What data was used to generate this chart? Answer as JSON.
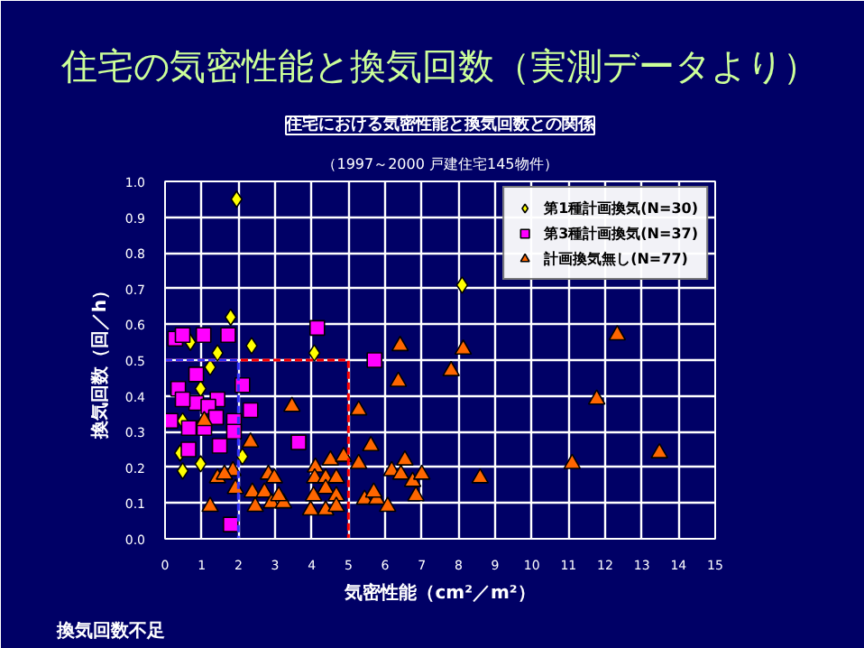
{
  "chart_data": {
    "type": "scatter",
    "title": "住宅の気密性能と換気回数（実測データより）",
    "subtitle": "住宅における気密性能と換気回数との関係",
    "annotations": [
      "（1997～2000 戸建住宅145物件）",
      "換気回数不足"
    ],
    "xlabel": "気密性能（cm²／m²）",
    "ylabel": "換気回数（回／h）",
    "xlim": [
      0,
      15
    ],
    "ylim": [
      0,
      1
    ],
    "xticks": [
      0,
      1,
      2,
      3,
      4,
      5,
      6,
      7,
      8,
      9,
      10,
      11,
      12,
      13,
      14,
      15
    ],
    "yticks": [
      {
        "value": 0,
        "label": "0.0"
      },
      0.1,
      0.2,
      0.3,
      0.4,
      0.5,
      0.6,
      0.7,
      0.8,
      0.9,
      {
        "value": 1,
        "label": "1.0"
      }
    ],
    "grid": true,
    "legend": "top right",
    "series": [
      {
        "name": "第1種計画換気(N=30)",
        "color": "#ffff00",
        "marker": "diamond",
        "x": [
          1.95,
          8.1,
          1.79,
          0.69,
          2.36,
          1.43,
          4.07,
          1.23,
          0.97,
          0.48,
          0.41,
          0.97,
          2.11,
          0.48
        ],
        "values": [
          0.95,
          0.71,
          0.62,
          0.55,
          0.54,
          0.52,
          0.52,
          0.48,
          0.42,
          0.33,
          0.24,
          0.21,
          0.23,
          0.19
        ]
      },
      {
        "name": "第3種計画換気(N=37)",
        "color": "#ff00ff",
        "marker": "square",
        "x": [
          0.28,
          0.48,
          1.05,
          1.72,
          4.15,
          5.71,
          0.85,
          2.11,
          0.36,
          1.43,
          0.85,
          1.18,
          1.88,
          0.15,
          0.65,
          1.07,
          1.39,
          1.88,
          2.33,
          1.49,
          0.64,
          3.64,
          1.79,
          0.48
        ],
        "values": [
          0.56,
          0.57,
          0.57,
          0.57,
          0.59,
          0.5,
          0.46,
          0.43,
          0.42,
          0.39,
          0.38,
          0.37,
          0.33,
          0.33,
          0.31,
          0.31,
          0.34,
          0.3,
          0.36,
          0.26,
          0.25,
          0.27,
          0.04,
          0.39
        ]
      },
      {
        "name": "計画換気無し(N=77)",
        "color": "#ff6600",
        "marker": "triangle",
        "x": [
          6.41,
          8.13,
          6.36,
          7.8,
          12.33,
          11.77,
          13.48,
          11.1,
          8.59,
          3.46,
          5.28,
          2.33,
          5.61,
          1.07,
          1.85,
          1.43,
          1.92,
          2.82,
          2.98,
          2.38,
          2.71,
          2.46,
          2.9,
          3.23,
          3.1,
          1.23,
          4.1,
          4.51,
          4.87,
          5.28,
          4.08,
          4.38,
          4.67,
          4.38,
          4.67,
          4.05,
          3.97,
          4.38,
          4.67,
          5.44,
          5.77,
          6.07,
          5.69,
          6.18,
          6.43,
          6.54,
          6.75,
          7.0,
          6.84,
          1.62
        ],
        "values": [
          0.54,
          0.53,
          0.44,
          0.47,
          0.57,
          0.39,
          0.24,
          0.21,
          0.17,
          0.37,
          0.36,
          0.27,
          0.26,
          0.33,
          0.19,
          0.17,
          0.14,
          0.18,
          0.17,
          0.13,
          0.13,
          0.09,
          0.1,
          0.1,
          0.12,
          0.09,
          0.2,
          0.22,
          0.23,
          0.21,
          0.17,
          0.17,
          0.17,
          0.14,
          0.12,
          0.12,
          0.08,
          0.08,
          0.09,
          0.11,
          0.11,
          0.09,
          0.13,
          0.19,
          0.18,
          0.22,
          0.16,
          0.18,
          0.12,
          0.18
        ]
      },
      {
        "type": "line",
        "color": "#ff0000",
        "line_style": "dashed",
        "x": [
          0,
          5,
          5
        ],
        "values": [
          0.5,
          0.5,
          0
        ]
      },
      {
        "type": "line",
        "color": "#3333ff",
        "line_style": "dashed",
        "x": [
          0,
          2,
          2
        ],
        "values": [
          0.5,
          0.5,
          0
        ]
      }
    ]
  }
}
